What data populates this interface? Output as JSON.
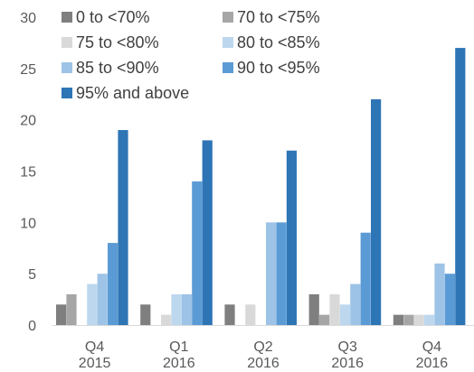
{
  "chart_data": {
    "type": "bar",
    "categories": [
      [
        "Q4",
        "2015"
      ],
      [
        "Q1",
        "2016"
      ],
      [
        "Q2",
        "2016"
      ],
      [
        "Q3",
        "2016"
      ],
      [
        "Q4",
        "2016"
      ]
    ],
    "series": [
      {
        "name": "0 to <70%",
        "color": "#7f7f7f",
        "values": [
          2,
          2,
          2,
          3,
          1
        ]
      },
      {
        "name": "70 to <75%",
        "color": "#a6a6a6",
        "values": [
          3,
          0,
          0,
          1,
          1
        ]
      },
      {
        "name": "75 to <80%",
        "color": "#d9d9d9",
        "values": [
          0,
          1,
          2,
          3,
          1
        ]
      },
      {
        "name": "80 to <85%",
        "color": "#bdd7ee",
        "values": [
          4,
          3,
          0,
          2,
          1
        ]
      },
      {
        "name": "85 to <90%",
        "color": "#9dc3e6",
        "values": [
          5,
          3,
          10,
          4,
          6
        ]
      },
      {
        "name": "90 to <95%",
        "color": "#5b9bd5",
        "values": [
          8,
          14,
          10,
          9,
          5
        ]
      },
      {
        "name": "95% and above",
        "color": "#2e75b6",
        "values": [
          19,
          18,
          17,
          22,
          27
        ]
      }
    ],
    "ylim": [
      0,
      30
    ],
    "yticks": [
      0,
      5,
      10,
      15,
      20,
      25,
      30
    ],
    "grid": false,
    "legend": "top-left"
  }
}
